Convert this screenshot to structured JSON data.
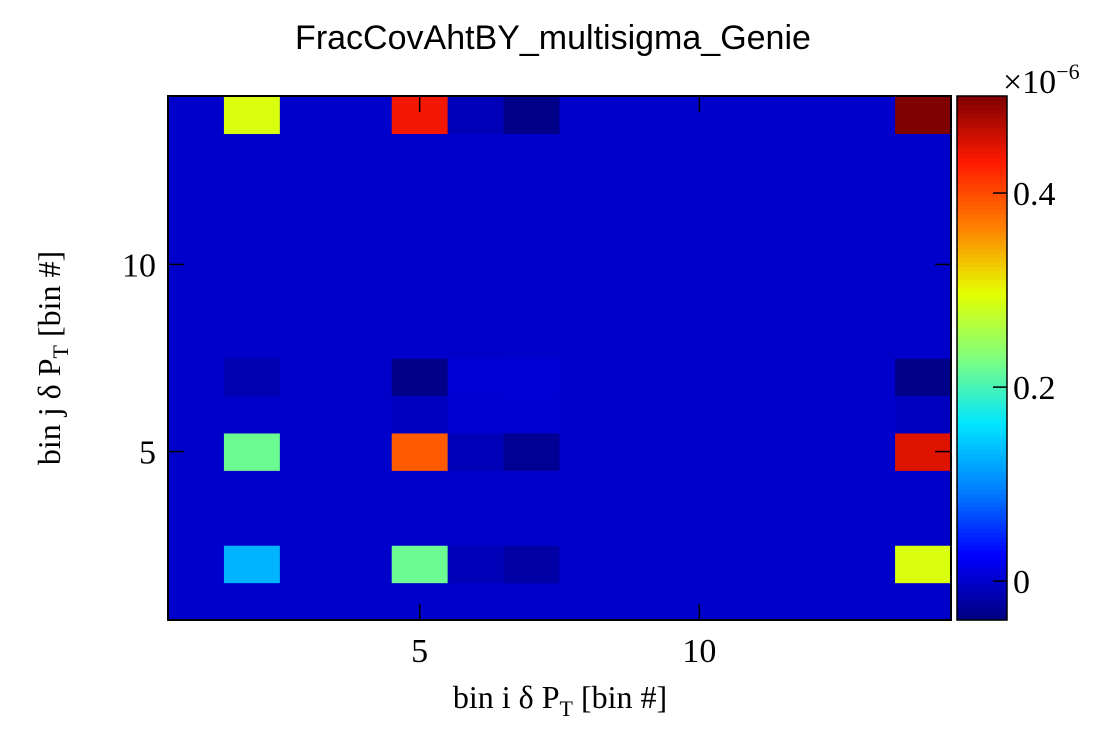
{
  "chart_data": {
    "type": "heatmap",
    "title": "FracCovAhtBY_multisigma_Genie",
    "xlabel": {
      "prefix": "bin i ",
      "delta": "δ",
      "p": " P",
      "sub": "T",
      "suffix": " [bin #]"
    },
    "ylabel": {
      "prefix": "bin j ",
      "delta": "δ",
      "p": " P",
      "sub": "T",
      "suffix": " [bin #]"
    },
    "x_bins": 14,
    "y_bins": 14,
    "xlim": [
      0.5,
      14.5
    ],
    "ylim": [
      0.5,
      14.5
    ],
    "x_ticks": [
      5,
      10
    ],
    "y_ticks": [
      5,
      10
    ],
    "z_range": [
      -0.04,
      0.5
    ],
    "z_ticks": [
      0,
      0.2,
      0.4
    ],
    "z_exponent_label": {
      "base": "×10",
      "exp": "−6"
    },
    "colorscale": [
      "#00007f",
      "#0000ff",
      "#0080ff",
      "#00e5ff",
      "#7fff7f",
      "#e5ff00",
      "#ff8000",
      "#ff1a00",
      "#7f0000"
    ],
    "default_value": 0,
    "cells": [
      {
        "x": 2,
        "y": 14,
        "z": 0.29
      },
      {
        "x": 5,
        "y": 14,
        "z": 0.44
      },
      {
        "x": 6,
        "y": 14,
        "z": -0.01
      },
      {
        "x": 7,
        "y": 14,
        "z": -0.035
      },
      {
        "x": 14,
        "y": 14,
        "z": 0.5
      },
      {
        "x": 2,
        "y": 7,
        "z": -0.015
      },
      {
        "x": 5,
        "y": 7,
        "z": -0.035
      },
      {
        "x": 6,
        "y": 7,
        "z": 0.005
      },
      {
        "x": 7,
        "y": 7,
        "z": 0.006
      },
      {
        "x": 14,
        "y": 7,
        "z": -0.035
      },
      {
        "x": 5,
        "y": 6,
        "z": -0.005
      },
      {
        "x": 6,
        "y": 6,
        "z": 0.003
      },
      {
        "x": 7,
        "y": 6,
        "z": 0.004
      },
      {
        "x": 14,
        "y": 6,
        "z": -0.005
      },
      {
        "x": 2,
        "y": 5,
        "z": 0.22
      },
      {
        "x": 5,
        "y": 5,
        "z": 0.39
      },
      {
        "x": 6,
        "y": 5,
        "z": -0.01
      },
      {
        "x": 7,
        "y": 5,
        "z": -0.03
      },
      {
        "x": 14,
        "y": 5,
        "z": 0.45
      },
      {
        "x": 2,
        "y": 2,
        "z": 0.13
      },
      {
        "x": 5,
        "y": 2,
        "z": 0.22
      },
      {
        "x": 6,
        "y": 2,
        "z": -0.01
      },
      {
        "x": 7,
        "y": 2,
        "z": -0.02
      },
      {
        "x": 14,
        "y": 2,
        "z": 0.29
      }
    ]
  }
}
